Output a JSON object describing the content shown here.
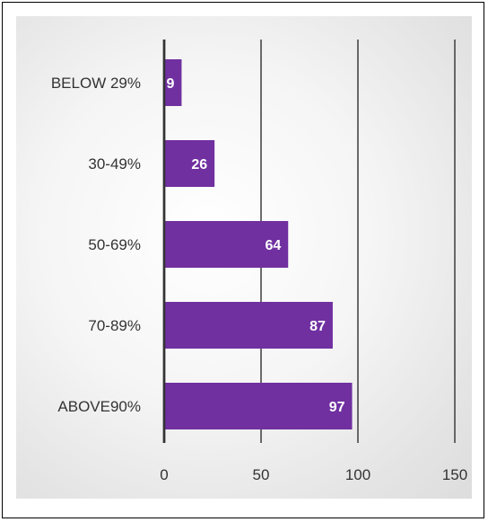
{
  "chart_data": {
    "type": "bar",
    "orientation": "horizontal",
    "categories": [
      "BELOW 29%",
      "30-49%",
      "50-69%",
      "70-89%",
      "ABOVE90%"
    ],
    "values": [
      9,
      26,
      64,
      87,
      97
    ],
    "xlim": [
      0,
      150
    ],
    "xticks": [
      "0",
      "50",
      "100",
      "150"
    ],
    "title": "",
    "xlabel": "",
    "ylabel": "",
    "grid": "vertical",
    "legend": "none",
    "bar_color": "#7030a0",
    "data_labels": [
      "9",
      "26",
      "64",
      "87",
      "97"
    ]
  }
}
